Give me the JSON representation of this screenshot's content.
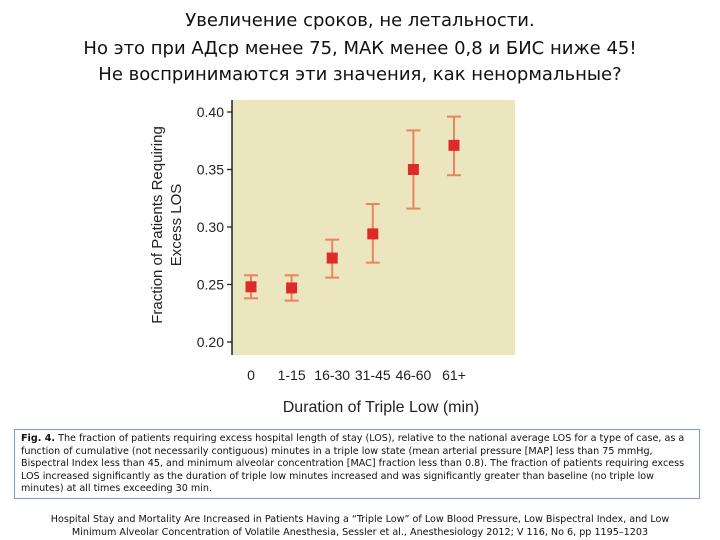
{
  "slide": {
    "title_lines": [
      "Увеличение сроков, не летальности.",
      "Но это при АДср менее 75, МАК менее 0,8 и БИС ниже 45!",
      "Не воспринимаются эти значения, как ненормальные?"
    ]
  },
  "chart_data": {
    "type": "scatter",
    "xlabel": "Duration of Triple Low (min)",
    "ylabel_line1": "Fraction of Patients Requiring",
    "ylabel_line2": "Excess LOS",
    "categories": [
      "0",
      "1-15",
      "16-30",
      "31-45",
      "46-60",
      "61+"
    ],
    "values": [
      0.248,
      0.247,
      0.273,
      0.294,
      0.35,
      0.371
    ],
    "error_low": [
      0.238,
      0.236,
      0.256,
      0.269,
      0.316,
      0.345
    ],
    "error_high": [
      0.258,
      0.258,
      0.289,
      0.32,
      0.384,
      0.396
    ],
    "yticks": [
      "0.40",
      "0.35",
      "0.30",
      "0.25",
      "0.20"
    ],
    "ylim": [
      0.2,
      0.4
    ],
    "grid": false,
    "plot_bg": "#ece6be",
    "marker_color": "#dd2a2a",
    "errorbar_color": "#e9845e"
  },
  "caption": {
    "label": "Fig. 4.",
    "text": "The fraction of patients requiring excess hospital length of stay (LOS), relative to the national average LOS for a type of case, as a function of cumulative (not necessarily contiguous) minutes in a triple low state (mean arterial pressure [MAP] less than 75 mmHg, Bispectral Index less than 45, and minimum alveolar concentration [MAC] fraction less than 0.8). The fraction of patients requiring excess LOS increased significantly as the duration of triple low minutes increased and was significantly greater than baseline (no triple low minutes) at all times exceeding 30 min."
  },
  "citation": {
    "line1": "Hospital Stay and Mortality Are Increased in Patients Having a “Triple Low” of Low Blood Pressure, Low Bispectral Index, and Low",
    "line2": "Minimum Alveolar Concentration of Volatile Anesthesia, Sessler et al., Anesthesiology 2012; V 116, No 6, pp 1195–1203"
  }
}
